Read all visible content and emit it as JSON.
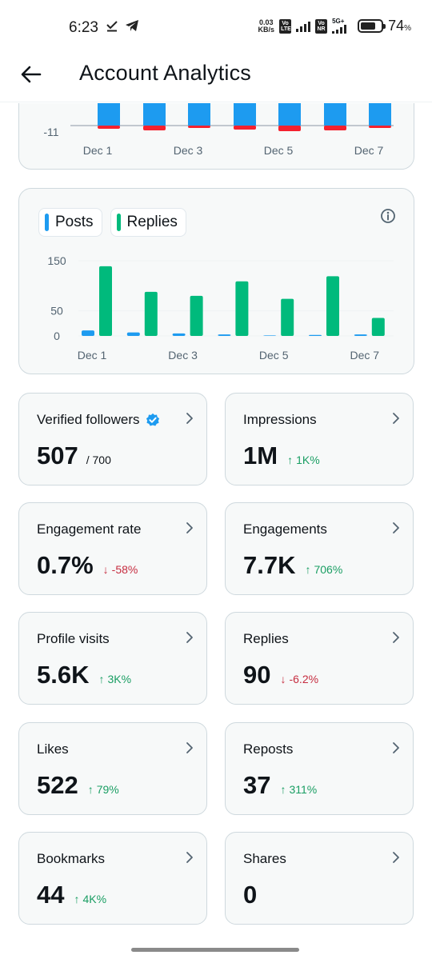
{
  "status_bar": {
    "time": "6:23",
    "net_speed_value": "0.03",
    "net_speed_unit": "KB/s",
    "sim1_tag": "Vo LTE",
    "sim2_tag": "Vo NR",
    "sim2_network": "5G+",
    "battery_percent": "74",
    "battery_level": 0.74,
    "icons": [
      "check-download-icon",
      "telegram-icon"
    ]
  },
  "header": {
    "title": "Account Analytics",
    "back_icon": "arrow-left-icon"
  },
  "top_chart": {
    "y_tick_label": "-11",
    "x_labels": [
      "Dec 1",
      "Dec 3",
      "Dec 5",
      "Dec 7"
    ],
    "colors": {
      "positive": "#1d9bf0",
      "negative": "#f4212e"
    }
  },
  "posts_replies_chart": {
    "legend": [
      {
        "label": "Posts",
        "color": "#1d9bf0"
      },
      {
        "label": "Replies",
        "color": "#00ba7c"
      }
    ],
    "info_icon": "info-icon"
  },
  "chart_data": {
    "type": "bar",
    "categories": [
      "Dec 1",
      "Dec 2",
      "Dec 3",
      "Dec 4",
      "Dec 5",
      "Dec 6",
      "Dec 7"
    ],
    "x_tick_labels": [
      "Dec 1",
      "Dec 3",
      "Dec 5",
      "Dec 7"
    ],
    "series": [
      {
        "name": "Posts",
        "values": [
          11,
          7,
          5,
          3,
          1,
          2,
          3
        ]
      },
      {
        "name": "Replies",
        "values": [
          139,
          88,
          80,
          109,
          74,
          119,
          36
        ]
      }
    ],
    "y_ticks": [
      0,
      50,
      150
    ],
    "ylim": [
      0,
      150
    ],
    "grid": true,
    "legend_position": "top-left"
  },
  "metrics": [
    {
      "label": "Verified followers",
      "value": "507",
      "sub": "/ 700",
      "verified": true
    },
    {
      "label": "Impressions",
      "value": "1M",
      "change": "1K%",
      "direction": "up"
    },
    {
      "label": "Engagement rate",
      "value": "0.7%",
      "change": "-58%",
      "direction": "down"
    },
    {
      "label": "Engagements",
      "value": "7.7K",
      "change": "706%",
      "direction": "up"
    },
    {
      "label": "Profile visits",
      "value": "5.6K",
      "change": "3K%",
      "direction": "up"
    },
    {
      "label": "Replies",
      "value": "90",
      "change": "-6.2%",
      "direction": "down"
    },
    {
      "label": "Likes",
      "value": "522",
      "change": "79%",
      "direction": "up"
    },
    {
      "label": "Reposts",
      "value": "37",
      "change": "311%",
      "direction": "up"
    },
    {
      "label": "Bookmarks",
      "value": "44",
      "change": "4K%",
      "direction": "up"
    },
    {
      "label": "Shares",
      "value": "0"
    }
  ],
  "colors": {
    "up": "#1a9e63",
    "down": "#c62d40",
    "verified": "#1d9bf0"
  }
}
